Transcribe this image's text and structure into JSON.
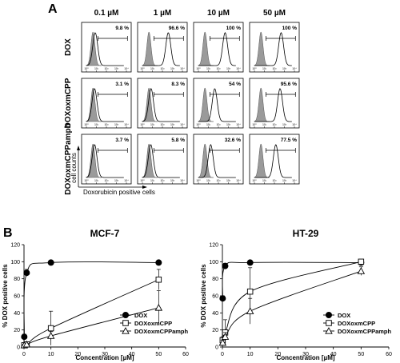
{
  "panel_labels": {
    "a": "A",
    "b": "B"
  },
  "panel_a": {
    "concentrations": [
      "0.1 µM",
      "1 µM",
      "10 µM",
      "50 µM"
    ],
    "rows": [
      {
        "label": "DOX",
        "percentages": [
          "9.8 %",
          "96.6 %",
          "100 %",
          "100 %"
        ]
      },
      {
        "label": "DOXoxmCPP",
        "percentages": [
          "3.1 %",
          "8.3 %",
          "54 %",
          "95.6 %"
        ]
      },
      {
        "label": "DOXoxmCPPamph",
        "percentages": [
          "3.7 %",
          "5.8 %",
          "32.6 %",
          "77.5 %"
        ]
      }
    ],
    "x_tick_labels": [
      "10⁰",
      "10¹",
      "10²",
      "10³",
      "10⁴"
    ],
    "y_axis_label": "cell counts",
    "x_axis_label": "Doxorubicin positive cells"
  },
  "chart_data": [
    {
      "type": "line",
      "title": "MCF-7",
      "xlabel": "Concentration [µM]",
      "ylabel": "% DOX positive cells",
      "xlim": [
        0,
        60
      ],
      "ylim": [
        0,
        120
      ],
      "xticks": [
        0,
        10,
        20,
        30,
        40,
        50,
        60
      ],
      "yticks": [
        0,
        20,
        40,
        60,
        80,
        100,
        120
      ],
      "legend_position": "bottom-right",
      "series": [
        {
          "name": "DOX",
          "marker": "filled-circle",
          "x": [
            0.1,
            1,
            10,
            50
          ],
          "y": [
            12,
            87,
            99,
            99
          ],
          "err": [
            3,
            4,
            0,
            0
          ]
        },
        {
          "name": "DOXoxmCPP",
          "marker": "open-square",
          "x": [
            0.1,
            1,
            10,
            50
          ],
          "y": [
            2,
            3,
            22,
            79
          ],
          "err": [
            1,
            2,
            20,
            12
          ]
        },
        {
          "name": "DOXoxmCPPamph",
          "marker": "open-triangle",
          "x": [
            0.1,
            1,
            10,
            50
          ],
          "y": [
            2,
            3,
            13,
            46
          ],
          "err": [
            1,
            1,
            5,
            20
          ]
        }
      ]
    },
    {
      "type": "line",
      "title": "HT-29",
      "xlabel": "Concentration [µM]",
      "ylabel": "% DOX positive cells",
      "xlim": [
        0,
        60
      ],
      "ylim": [
        0,
        120
      ],
      "xticks": [
        0,
        10,
        20,
        30,
        40,
        50,
        60
      ],
      "yticks": [
        0,
        20,
        40,
        60,
        80,
        100,
        120
      ],
      "legend_position": "bottom-right",
      "series": [
        {
          "name": "DOX",
          "marker": "filled-circle",
          "x": [
            0.1,
            1,
            10,
            50
          ],
          "y": [
            57,
            95,
            99,
            99
          ],
          "err": [
            3,
            3,
            1,
            1
          ]
        },
        {
          "name": "DOXoxmCPP",
          "marker": "open-square",
          "x": [
            0.1,
            1,
            10,
            50
          ],
          "y": [
            8,
            17,
            65,
            100
          ],
          "err": [
            4,
            15,
            28,
            2
          ]
        },
        {
          "name": "DOXoxmCPPamph",
          "marker": "open-triangle",
          "x": [
            0.1,
            1,
            10,
            50
          ],
          "y": [
            5,
            12,
            42,
            89
          ],
          "err": [
            3,
            5,
            15,
            5
          ]
        }
      ]
    }
  ]
}
